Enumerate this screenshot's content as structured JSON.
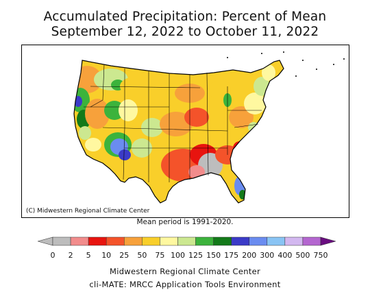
{
  "title": {
    "line1": "Accumulated Precipitation: Percent of Mean",
    "line2": "September 12, 2022 to October 11, 2022"
  },
  "map": {
    "copyright": "(C) Midwestern Regional Climate Center",
    "mean_period": "Mean period is 1991-2020."
  },
  "legend": {
    "tick_labels": [
      "0",
      "2",
      "5",
      "10",
      "25",
      "50",
      "75",
      "100",
      "125",
      "150",
      "175",
      "200",
      "300",
      "400",
      "500",
      "750"
    ],
    "colors": [
      "#bdbdbd",
      "#f28c8c",
      "#e8140f",
      "#f4532a",
      "#f7a13b",
      "#f9cf2a",
      "#fff8a0",
      "#cce890",
      "#3cb33c",
      "#137a1a",
      "#3b3bc8",
      "#6a8cf0",
      "#89c4f4",
      "#d3b8f0",
      "#b466d0"
    ],
    "left_arrow_color": "#bdbdbd",
    "right_arrow_color": "#6a0d80"
  },
  "footer": {
    "line1": "Midwestern Regional Climate Center",
    "line2": "cli-MATE: MRCC Application Tools Environment"
  }
}
